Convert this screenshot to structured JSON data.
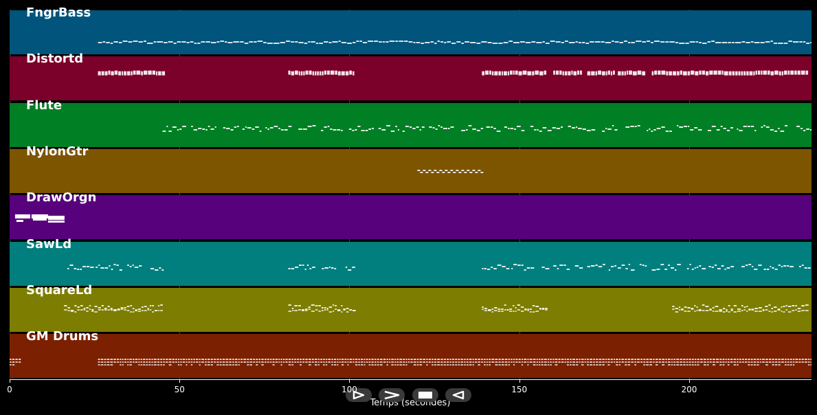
{
  "tracks": [
    {
      "name": "FngrBass",
      "color": "#01547b",
      "segments": [
        [
          26,
          236
        ]
      ],
      "style": "bass"
    },
    {
      "name": "Distortd",
      "color": "#7b012a",
      "segments": [
        [
          26,
          45
        ],
        [
          82,
          101
        ],
        [
          139,
          158
        ],
        [
          160,
          168
        ],
        [
          170,
          178
        ],
        [
          179,
          187
        ],
        [
          189,
          235
        ]
      ],
      "style": "block"
    },
    {
      "name": "Flute",
      "color": "#017f24",
      "segments": [
        [
          45,
          236
        ]
      ],
      "style": "phrase"
    },
    {
      "name": "NylonGtr",
      "color": "#7d5501",
      "segments": [
        [
          120,
          139
        ]
      ],
      "style": "wave"
    },
    {
      "name": "DrawOrgn",
      "color": "#57017d",
      "segments": [
        [
          2,
          17
        ]
      ],
      "style": "organ"
    },
    {
      "name": "SawLd",
      "color": "#017f7e",
      "segments": [
        [
          17,
          45
        ],
        [
          82,
          101
        ],
        [
          139,
          158
        ],
        [
          160,
          168
        ],
        [
          170,
          178
        ],
        [
          179,
          187
        ],
        [
          189,
          235
        ]
      ],
      "style": "phrase"
    },
    {
      "name": "SquareLd",
      "color": "#7d7d01",
      "segments": [
        [
          16,
          45
        ],
        [
          82,
          101
        ],
        [
          139,
          158
        ],
        [
          195,
          235
        ]
      ],
      "style": "dense"
    },
    {
      "name": "GM Drums",
      "color": "#7b2101",
      "segments": [
        [
          0,
          3
        ],
        [
          26,
          236
        ]
      ],
      "style": "drums"
    }
  ],
  "axis": {
    "xlabel": "Temps (secondes)",
    "xlim": [
      0,
      236
    ],
    "ticks": [
      0,
      50,
      100,
      150,
      200
    ]
  },
  "controls": [
    {
      "name": "play-icon"
    },
    {
      "name": "fast-forward-icon"
    },
    {
      "name": "stop-icon"
    },
    {
      "name": "rewind-icon"
    }
  ]
}
